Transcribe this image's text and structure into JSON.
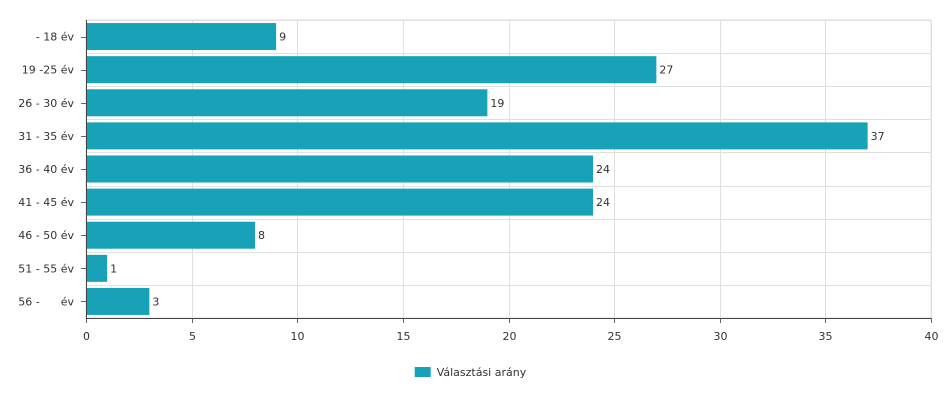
{
  "chart_data": {
    "type": "bar",
    "orientation": "horizontal",
    "categories": [
      "- 18 év",
      "19 -25 év",
      "26 - 30 év",
      "31 - 35 év",
      "36 - 40 év",
      "41 - 45 év",
      "46 - 50 év",
      "51 - 55 év",
      "56 -      év"
    ],
    "series": [
      {
        "name": "Választási arány",
        "values": [
          9,
          27,
          19,
          37,
          24,
          24,
          8,
          1,
          3
        ],
        "color": "#17a2b8"
      }
    ],
    "x_ticks": [
      "0",
      "5",
      "10",
      "15",
      "20",
      "25",
      "30",
      "35",
      "40"
    ],
    "xlim": [
      0,
      40
    ],
    "grid": true,
    "data_labels": true,
    "legend_position": "bottom-center"
  }
}
